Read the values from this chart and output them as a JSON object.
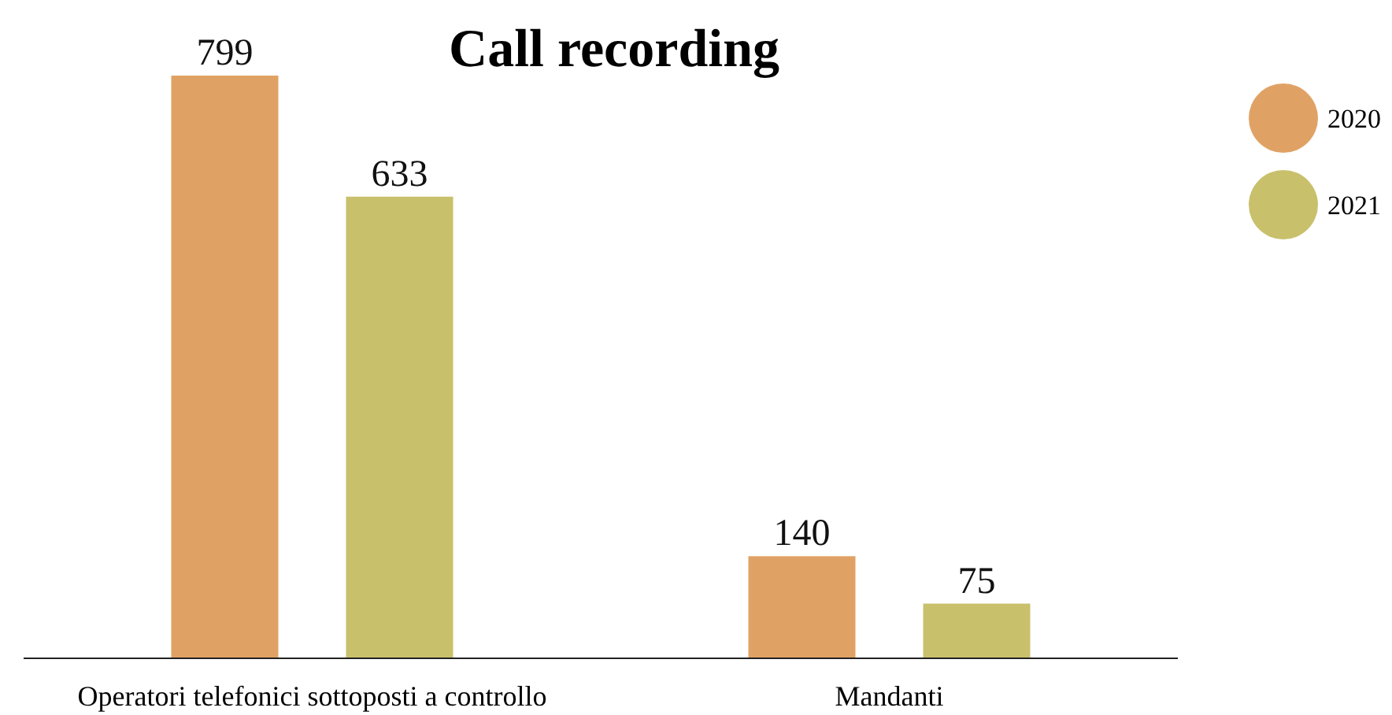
{
  "chart_data": {
    "type": "bar",
    "title": "Call recording",
    "categories": [
      "Operatori telefonici sottoposti a controllo",
      "Mandanti"
    ],
    "series": [
      {
        "name": "2020",
        "color": "#e0a264",
        "values": [
          799,
          140
        ]
      },
      {
        "name": "2021",
        "color": "#c9c06c",
        "values": [
          633,
          75
        ]
      }
    ],
    "data_labels": true,
    "legend": "right"
  }
}
